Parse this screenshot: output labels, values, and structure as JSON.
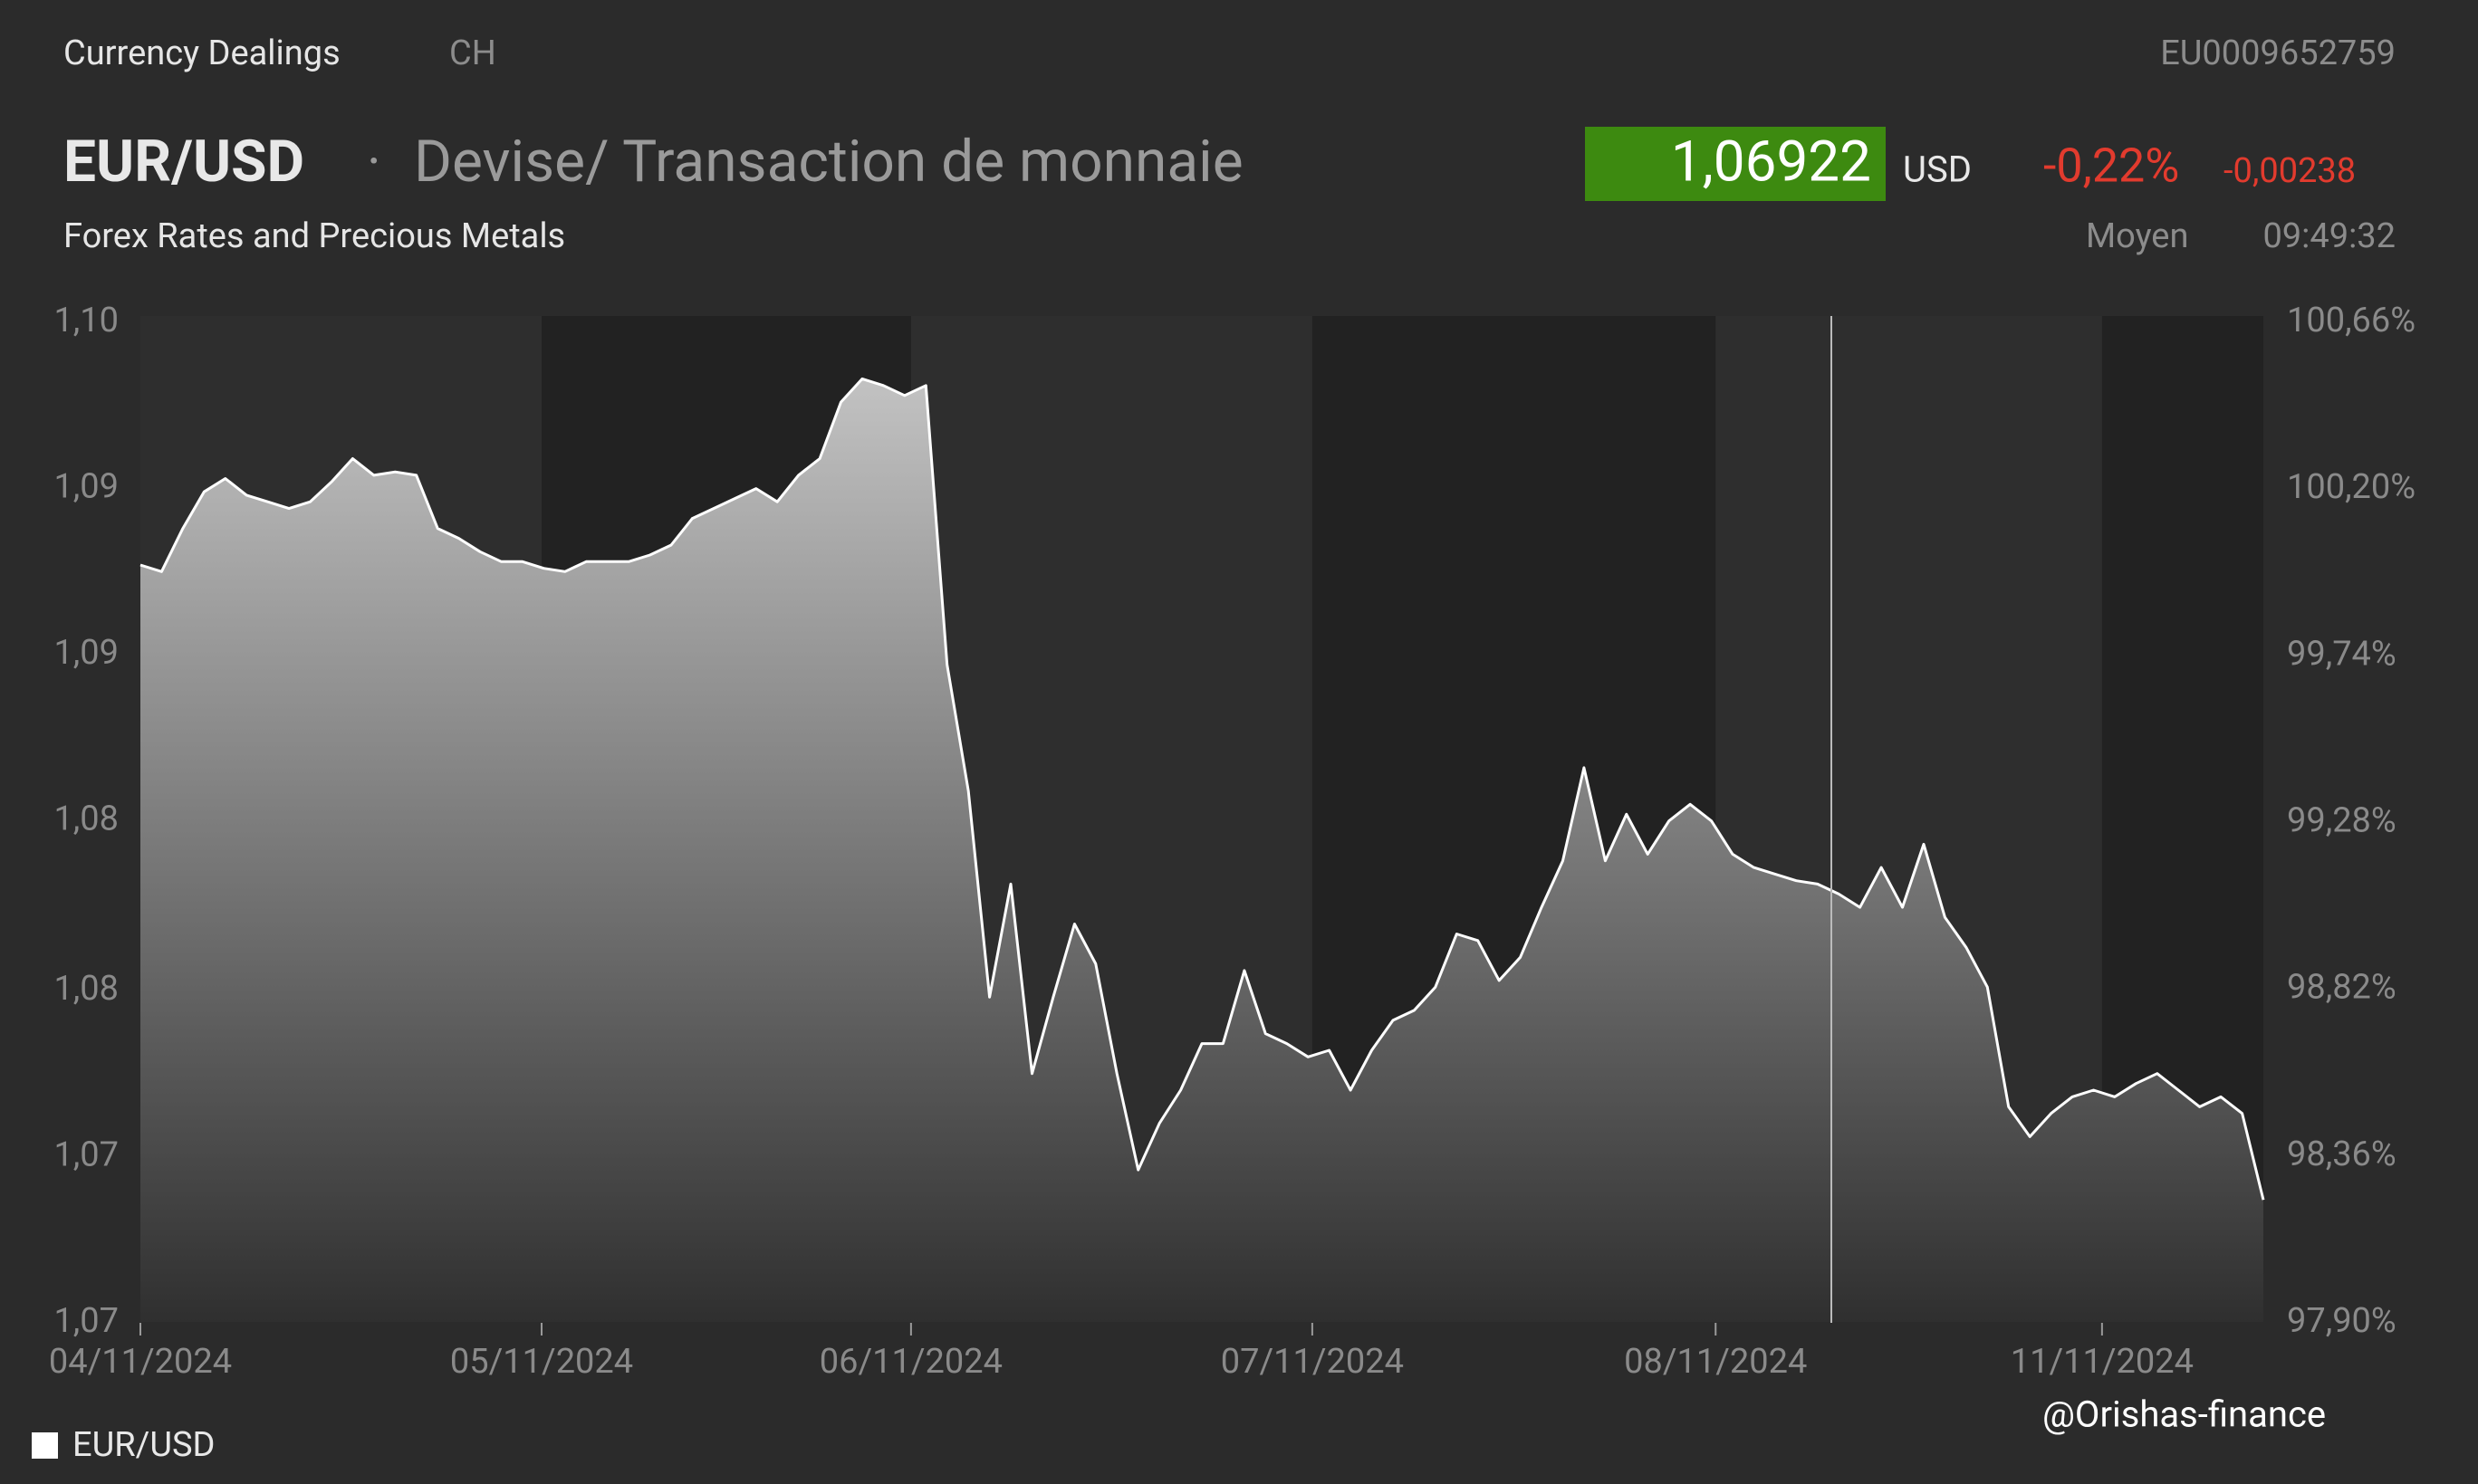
{
  "header": {
    "section": "Currency Dealings",
    "country": "CH",
    "isin": "EU0009652759",
    "pair": "EUR/USD",
    "separator": "·",
    "description": "Devise/ Transaction de monnaie",
    "price": "1,06922",
    "currency": "USD",
    "change_pct": "-0,22%",
    "change_abs": "-0,00238",
    "subtitle": "Forex Rates and Precious Metals",
    "price_type": "Moyen",
    "time": "09:49:32"
  },
  "watermark": "@Orishas-finance",
  "chart_data": {
    "type": "area",
    "series": [
      {
        "name": "EUR/USD",
        "color": "#ffffff",
        "values": [
          1.0885,
          1.0883,
          1.0896,
          1.0907,
          1.0911,
          1.0906,
          1.0904,
          1.0902,
          1.0904,
          1.091,
          1.0917,
          1.0912,
          1.0913,
          1.0912,
          1.0896,
          1.0893,
          1.0889,
          1.0886,
          1.0886,
          1.0884,
          1.0883,
          1.0886,
          1.0886,
          1.0886,
          1.0888,
          1.0891,
          1.0899,
          1.0902,
          1.0905,
          1.0908,
          1.0904,
          1.0912,
          1.0917,
          1.0934,
          1.0941,
          1.0939,
          1.0936,
          1.0939,
          1.0855,
          1.0817,
          1.0755,
          1.0789,
          1.0732,
          1.0755,
          1.0777,
          1.0765,
          1.0732,
          1.0703,
          1.0717,
          1.0727,
          1.0741,
          1.0741,
          1.0763,
          1.0744,
          1.0741,
          1.0737,
          1.0739,
          1.0727,
          1.0739,
          1.0748,
          1.0751,
          1.0758,
          1.0774,
          1.0772,
          1.076,
          1.0767,
          1.0782,
          1.0796,
          1.0824,
          1.0796,
          1.081,
          1.0798,
          1.0808,
          1.0813,
          1.0808,
          1.0798,
          1.0794,
          1.0792,
          1.079,
          1.0789,
          1.0786,
          1.0782,
          1.0794,
          1.0782,
          1.0801,
          1.0779,
          1.077,
          1.0758,
          1.0722,
          1.0713,
          1.072,
          1.0725,
          1.0727,
          1.0725,
          1.0729,
          1.0732,
          1.0727,
          1.0722,
          1.0725,
          1.072,
          1.0694
        ]
      }
    ],
    "xlim": [
      0,
      100
    ],
    "xticks": [
      {
        "value": 0,
        "label": "04/11/2024"
      },
      {
        "value": 18.9,
        "label": "05/11/2024"
      },
      {
        "value": 36.3,
        "label": "06/11/2024"
      },
      {
        "value": 55.2,
        "label": "07/11/2024"
      },
      {
        "value": 74.2,
        "label": "08/11/2024"
      },
      {
        "value": 92.4,
        "label": "11/11/2024"
      }
    ],
    "ylim": [
      1.0657,
      1.0958
    ],
    "yticks": [
      {
        "value": 1.0657,
        "label": "1,07"
      },
      {
        "value": 1.0707,
        "label": "1,07"
      },
      {
        "value": 1.0757,
        "label": "1,08"
      },
      {
        "value": 1.0808,
        "label": "1,08"
      },
      {
        "value": 1.0858,
        "label": "1,09"
      },
      {
        "value": 1.0908,
        "label": "1,09"
      },
      {
        "value": 1.0958,
        "label": "1,10"
      }
    ],
    "y2lim": [
      97.9,
      100.66
    ],
    "y2ticks": [
      {
        "value": 97.9,
        "label": "97,90%"
      },
      {
        "value": 98.36,
        "label": "98,36%"
      },
      {
        "value": 98.82,
        "label": "98,82%"
      },
      {
        "value": 99.28,
        "label": "99,28%"
      },
      {
        "value": 99.74,
        "label": "99,74%"
      },
      {
        "value": 100.2,
        "label": "100,20%"
      },
      {
        "value": 100.66,
        "label": "100,66%"
      }
    ],
    "legend": "bottom-left"
  }
}
